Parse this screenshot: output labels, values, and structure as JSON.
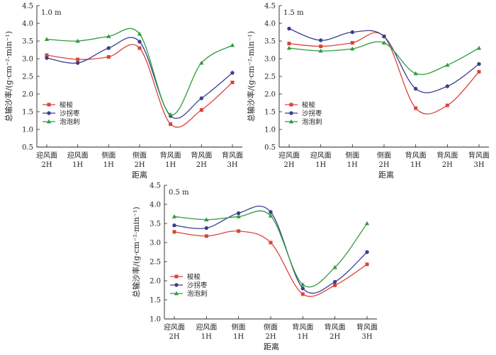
{
  "chart_data": [
    {
      "type": "line",
      "panel_label": "1.0 m",
      "categories": [
        [
          "迎风面",
          "2H"
        ],
        [
          "迎风面",
          "1H"
        ],
        [
          "侧面",
          "1H"
        ],
        [
          "侧面",
          "2H"
        ],
        [
          "背风面",
          "1H"
        ],
        [
          "背风面",
          "2H"
        ],
        [
          "背风面",
          "3H"
        ]
      ],
      "xlabel": "距离",
      "ylabel": "总输沙率/(g·cm⁻²·min⁻¹)",
      "ylim": [
        0.5,
        4.5
      ],
      "yticks": [
        "0.5",
        "1.0",
        "1.5",
        "2.0",
        "2.5",
        "3.0",
        "3.5",
        "4.0",
        "4.5"
      ],
      "legend_position": "lower-left",
      "series": [
        {
          "name": "梭梭",
          "color": "#d9443a",
          "marker": "square",
          "values": [
            3.1,
            2.98,
            3.05,
            3.3,
            1.15,
            1.55,
            2.33
          ]
        },
        {
          "name": "沙拐枣",
          "color": "#3b3f8f",
          "marker": "circle",
          "values": [
            3.02,
            2.88,
            3.3,
            3.48,
            1.38,
            1.88,
            2.6
          ]
        },
        {
          "name": "泡泡刺",
          "color": "#2e9b3e",
          "marker": "triangle",
          "values": [
            3.55,
            3.5,
            3.63,
            3.7,
            1.42,
            2.88,
            3.38
          ]
        }
      ]
    },
    {
      "type": "line",
      "panel_label": "1.5 m",
      "categories": [
        [
          "迎风面",
          "2H"
        ],
        [
          "迎风面",
          "1H"
        ],
        [
          "侧面",
          "1H"
        ],
        [
          "侧面",
          "2H"
        ],
        [
          "背风面",
          "1H"
        ],
        [
          "背风面",
          "2H"
        ],
        [
          "背风面",
          "3H"
        ]
      ],
      "xlabel": "距离",
      "ylabel": "总输沙率/(g·cm⁻²·min⁻¹)",
      "ylim": [
        0.5,
        4.5
      ],
      "yticks": [
        "0.5",
        "1.0",
        "1.5",
        "2.0",
        "2.5",
        "3.0",
        "3.5",
        "4.0",
        "4.5"
      ],
      "legend_position": "lower-left",
      "series": [
        {
          "name": "梭梭",
          "color": "#d9443a",
          "marker": "square",
          "values": [
            3.43,
            3.35,
            3.45,
            3.63,
            1.6,
            1.68,
            2.63
          ]
        },
        {
          "name": "沙拐枣",
          "color": "#3b3f8f",
          "marker": "circle",
          "values": [
            3.85,
            3.52,
            3.75,
            3.63,
            2.15,
            2.22,
            2.85
          ]
        },
        {
          "name": "泡泡刺",
          "color": "#2e9b3e",
          "marker": "triangle",
          "values": [
            3.3,
            3.22,
            3.28,
            3.45,
            2.58,
            2.82,
            3.3
          ]
        }
      ]
    },
    {
      "type": "line",
      "panel_label": "0.5 m",
      "categories": [
        [
          "迎风面",
          "2H"
        ],
        [
          "迎风面",
          "1H"
        ],
        [
          "侧面",
          "1H"
        ],
        [
          "侧面",
          "2H"
        ],
        [
          "背风面",
          "1H"
        ],
        [
          "背风面",
          "2H"
        ],
        [
          "背风面",
          "3H"
        ]
      ],
      "xlabel": "距离",
      "ylabel": "总输沙率/(g·cm⁻²·min⁻¹)",
      "ylim": [
        1.0,
        4.5
      ],
      "yticks": [
        "1.0",
        "1.5",
        "2.0",
        "2.5",
        "3.0",
        "3.5",
        "4.0",
        "4.5"
      ],
      "legend_position": "lower-left",
      "series": [
        {
          "name": "梭梭",
          "color": "#d9443a",
          "marker": "square",
          "values": [
            3.28,
            3.17,
            3.3,
            3.0,
            1.65,
            1.88,
            2.43
          ]
        },
        {
          "name": "沙拐枣",
          "color": "#3b3f8f",
          "marker": "circle",
          "values": [
            3.45,
            3.38,
            3.77,
            3.8,
            1.8,
            1.97,
            2.75
          ]
        },
        {
          "name": "泡泡刺",
          "color": "#2e9b3e",
          "marker": "triangle",
          "values": [
            3.68,
            3.6,
            3.68,
            3.7,
            1.9,
            2.35,
            3.5
          ]
        }
      ]
    }
  ]
}
